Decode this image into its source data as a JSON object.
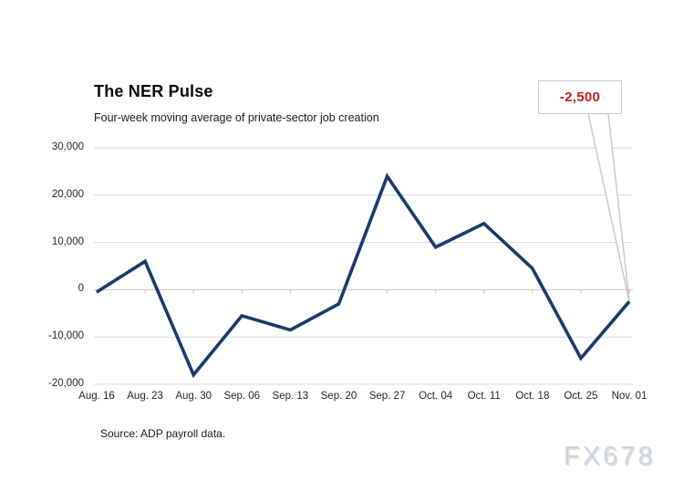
{
  "chart": {
    "title": "The NER Pulse",
    "subtitle": "Four-week moving average of private-sector job creation",
    "source": "Source: ADP payroll data.",
    "watermark": "FX678",
    "annotation": {
      "label": "-2,500",
      "color": "#c01f1f"
    }
  },
  "chart_data": {
    "type": "line",
    "title": "The NER Pulse",
    "subtitle": "Four-week moving average of private-sector job creation",
    "xlabel": "",
    "ylabel": "",
    "categories": [
      "Aug. 16",
      "Aug. 23",
      "Aug. 30",
      "Sep. 06",
      "Sep. 13",
      "Sep. 20",
      "Sep. 27",
      "Oct. 04",
      "Oct. 11",
      "Oct. 18",
      "Oct. 25",
      "Nov. 01"
    ],
    "values": [
      -500,
      6000,
      -18000,
      -5500,
      -8500,
      -3000,
      24000,
      9000,
      14000,
      4500,
      -14500,
      -2500
    ],
    "ylim": [
      -20000,
      30000
    ],
    "yticks": [
      30000,
      20000,
      10000,
      0,
      -10000,
      -20000
    ],
    "ytick_labels": [
      "30,000",
      "20,000",
      "10,000",
      "0",
      "-10,000",
      "-20,000"
    ],
    "grid": true,
    "legend": "none",
    "line_color": "#1a3a6c",
    "gridline_color": "#d9d9d9",
    "zero_axis_color": "#c6c6c6",
    "tick_color": "#bfbfbf",
    "callout_border_color": "#c9c9c9",
    "annotation": {
      "index": 11,
      "label": "-2,500"
    }
  }
}
